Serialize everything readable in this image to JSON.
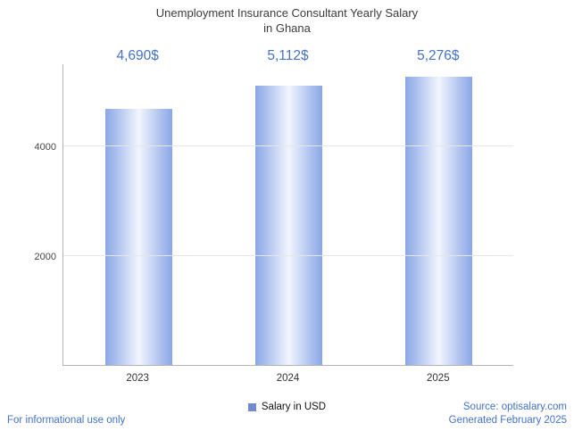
{
  "title": {
    "line1": "Unemployment Insurance Consultant Yearly Salary",
    "line2": "in Ghana"
  },
  "legend": {
    "label": "Salary in USD"
  },
  "footer": {
    "disclaimer": "For informational use only",
    "source": "Source: optisalary.com",
    "generated": "Generated February 2025"
  },
  "chart_data": {
    "type": "bar",
    "title": "Unemployment Insurance Consultant Yearly Salary in Ghana",
    "categories": [
      "2023",
      "2024",
      "2025"
    ],
    "values": [
      4690,
      5112,
      5276
    ],
    "value_labels": [
      "4,690$",
      "5,112$",
      "5,276$"
    ],
    "series_name": "Salary in USD",
    "xlabel": "",
    "ylabel": "",
    "ylim": [
      0,
      5512
    ],
    "yticks": [
      2000,
      4000
    ],
    "grid": true,
    "legend_position": "bottom",
    "colors": {
      "bar_edge": "#8aa6e6",
      "bar_center": "#f1f5fd",
      "label_text": "#4472c4",
      "axis": "#b3b3b3",
      "gridline": "#e6e6e6",
      "legend_swatch": "#7289ce",
      "title_text": "#3b3b3b"
    }
  }
}
